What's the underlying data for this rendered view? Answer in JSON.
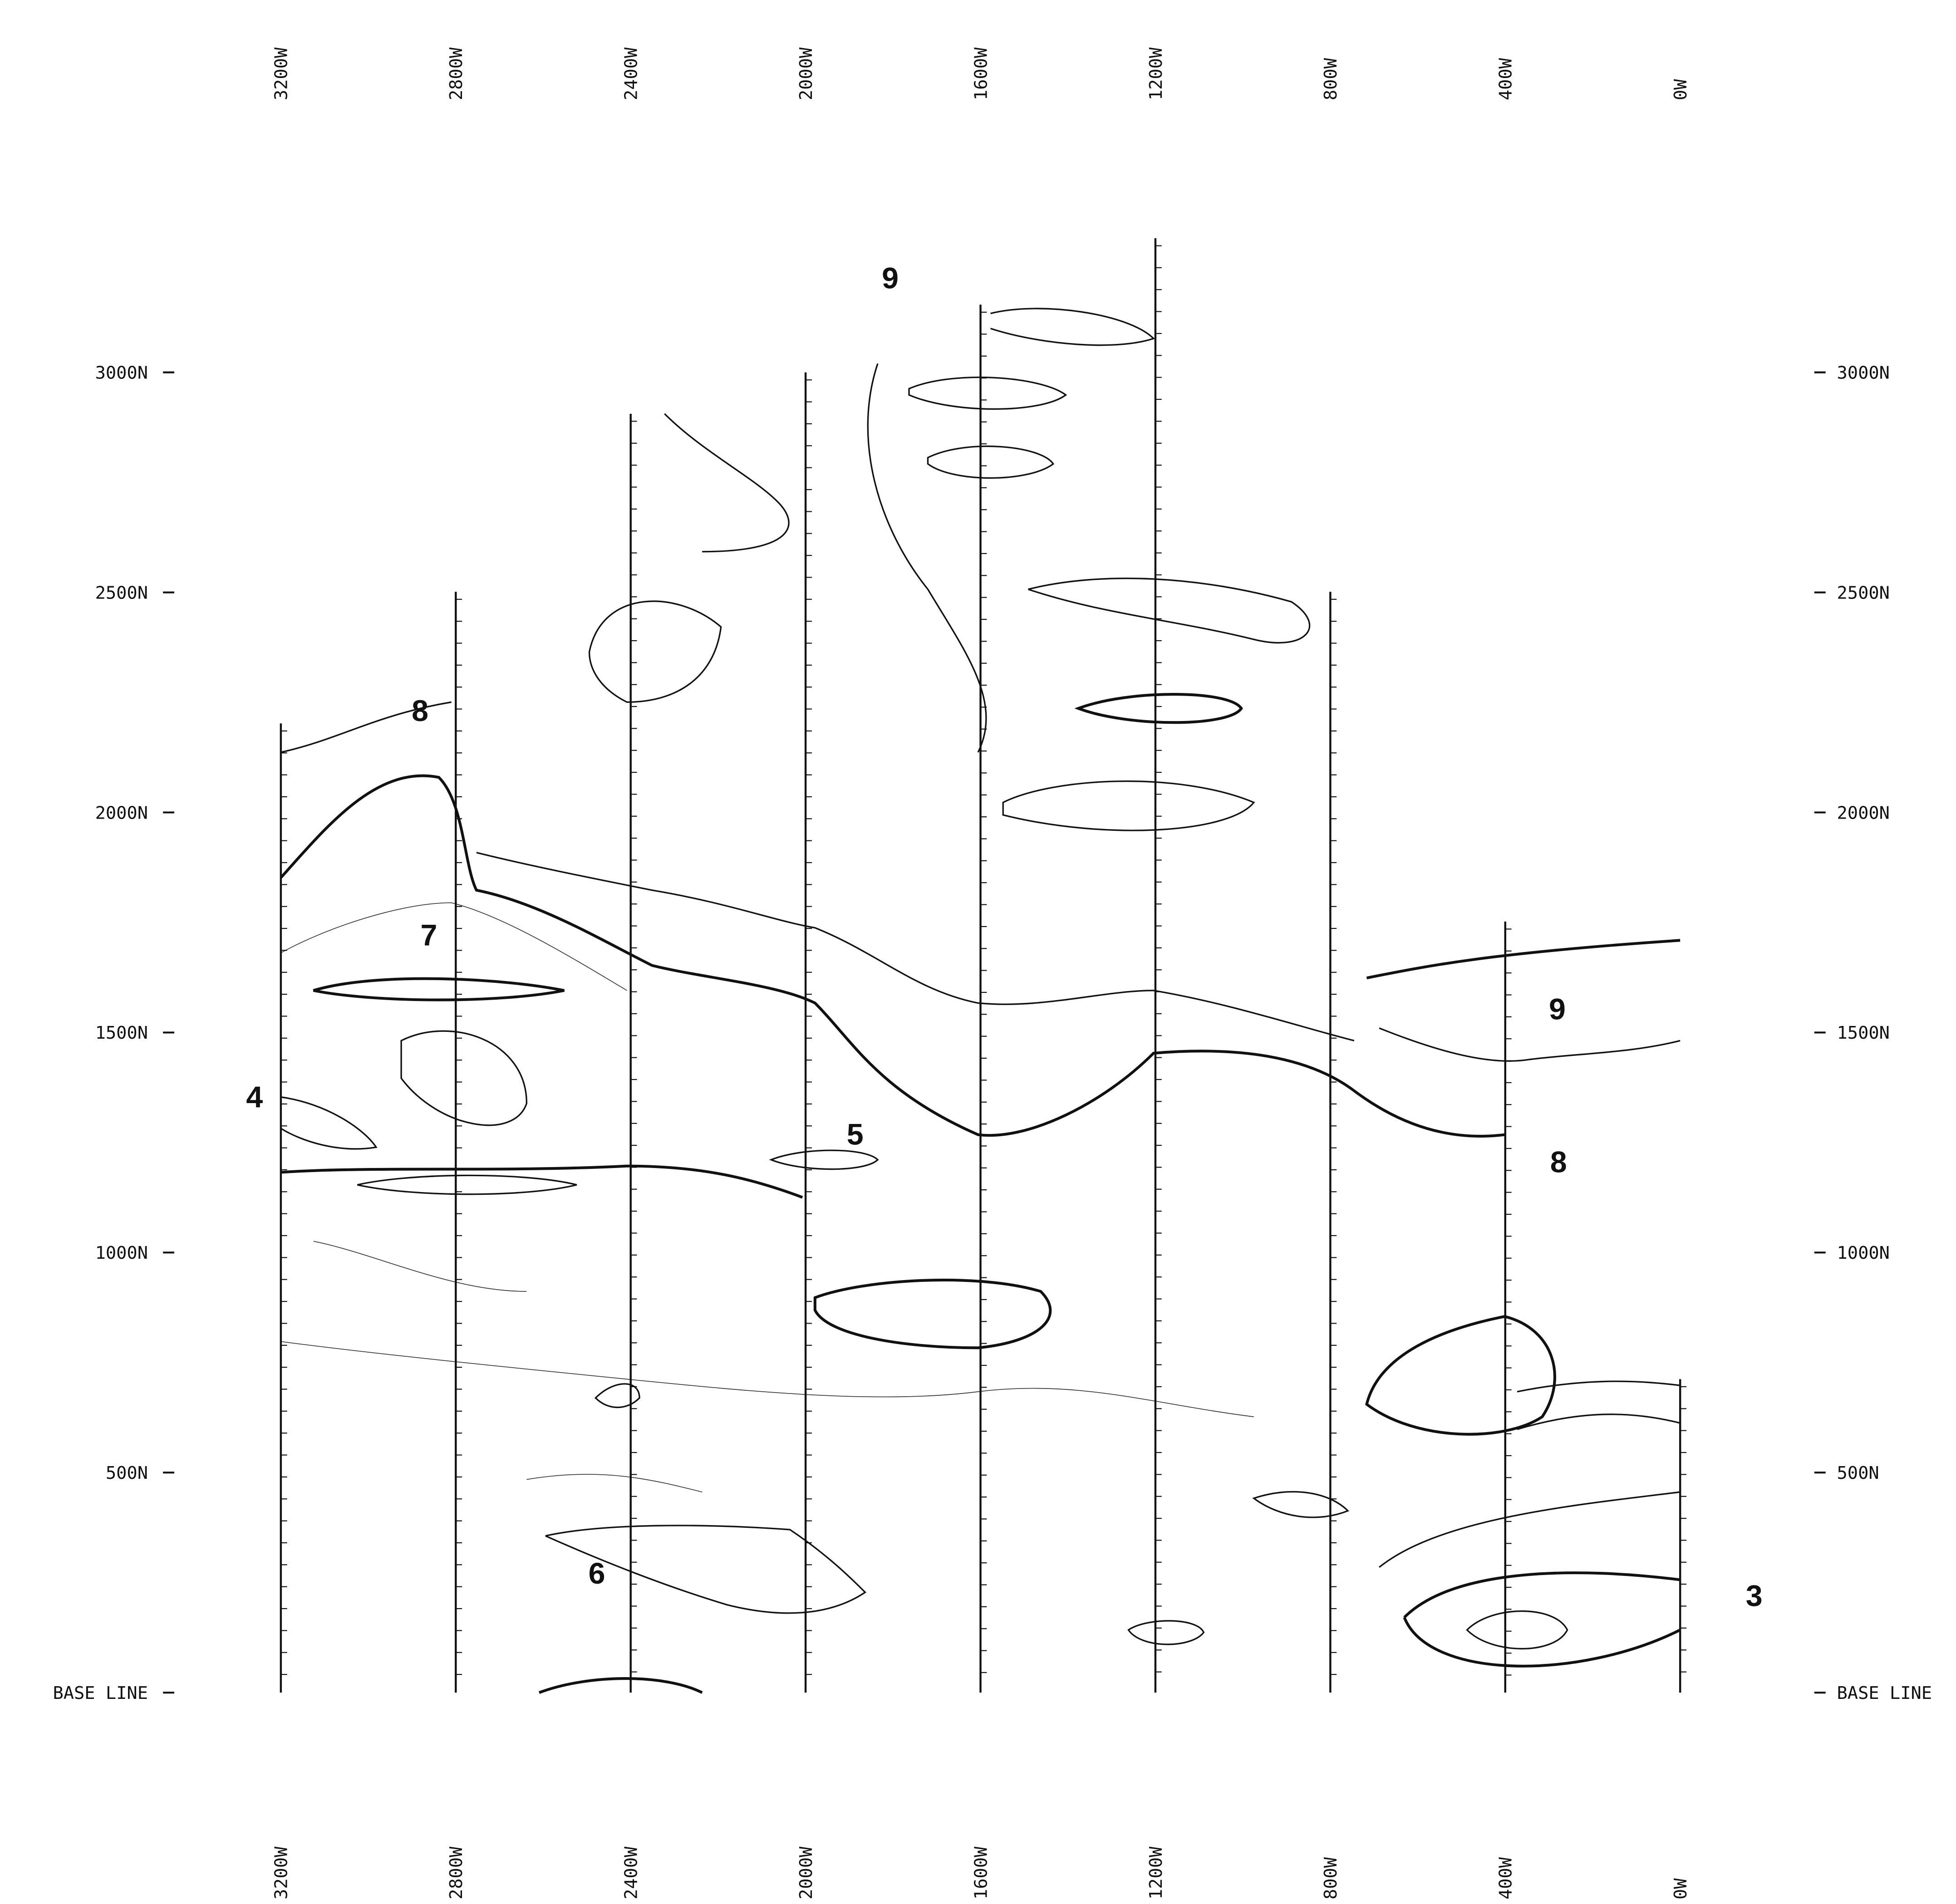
{
  "grid": {
    "east_west_lines": [
      "3200W",
      "2800W",
      "2400W",
      "2000W",
      "1600W",
      "1200W",
      "800W",
      "400W",
      "0W"
    ],
    "north_lines": [
      "3000N",
      "2500N",
      "2000N",
      "1500N",
      "1000N",
      "500N",
      "BASE LINE"
    ]
  },
  "anomaly_labels": [
    "9",
    "8",
    "7",
    "4",
    "5",
    "6",
    "9",
    "8",
    "3"
  ]
}
